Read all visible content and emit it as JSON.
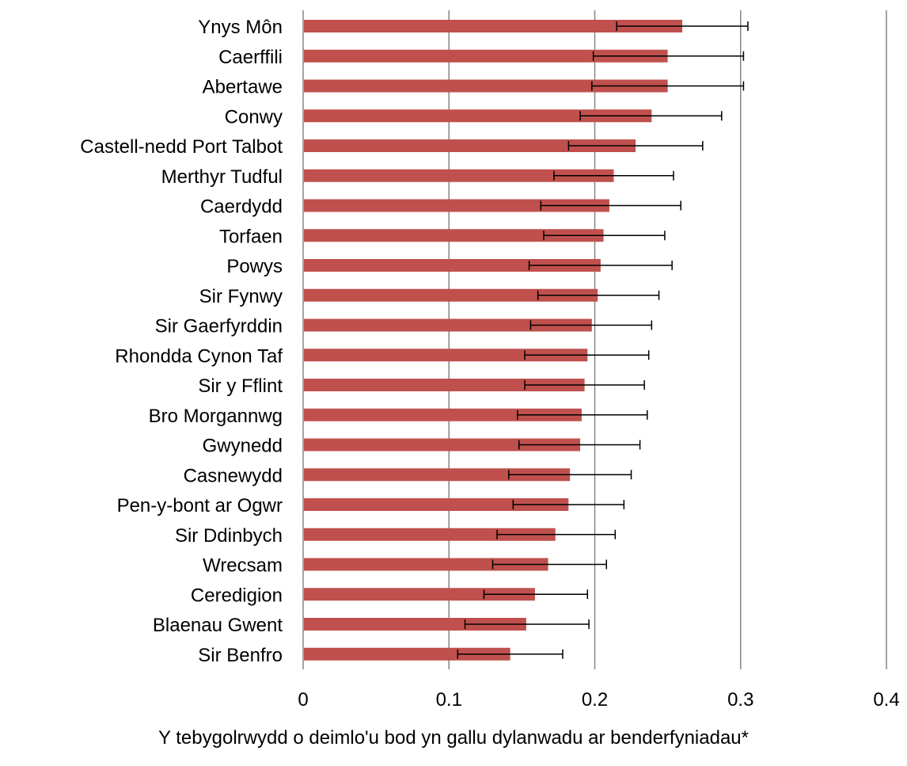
{
  "chart_data": {
    "type": "bar",
    "orientation": "horizontal",
    "categories": [
      "Ynys Môn",
      "Caerffili",
      "Abertawe",
      "Conwy",
      "Castell-nedd Port Talbot",
      "Merthyr Tudful",
      "Caerdydd",
      "Torfaen",
      "Powys",
      "Sir Fynwy",
      "Sir Gaerfyrddin",
      "Rhondda Cynon Taf",
      "Sir y Fflint",
      "Bro Morgannwg",
      "Gwynedd",
      "Casnewydd",
      "Pen-y-bont ar Ogwr",
      "Sir Ddinbych",
      "Wrecsam",
      "Ceredigion",
      "Blaenau Gwent",
      "Sir Benfro"
    ],
    "values": [
      0.26,
      0.25,
      0.25,
      0.239,
      0.228,
      0.213,
      0.21,
      0.206,
      0.204,
      0.202,
      0.198,
      0.195,
      0.193,
      0.191,
      0.19,
      0.183,
      0.182,
      0.173,
      0.168,
      0.159,
      0.153,
      0.142
    ],
    "error_low": [
      0.215,
      0.199,
      0.198,
      0.19,
      0.182,
      0.172,
      0.163,
      0.165,
      0.155,
      0.161,
      0.156,
      0.152,
      0.152,
      0.147,
      0.148,
      0.141,
      0.144,
      0.133,
      0.13,
      0.124,
      0.111,
      0.106
    ],
    "error_high": [
      0.305,
      0.302,
      0.302,
      0.287,
      0.274,
      0.254,
      0.259,
      0.248,
      0.253,
      0.244,
      0.239,
      0.237,
      0.234,
      0.236,
      0.231,
      0.225,
      0.22,
      0.214,
      0.208,
      0.195,
      0.196,
      0.178
    ],
    "xlim": [
      0,
      0.4
    ],
    "xticks": [
      "0",
      "0.1",
      "0.2",
      "0.3",
      "0.4"
    ],
    "xlabel": "Y tebygolrwydd o deimlo'u bod yn gallu dylanwadu ar benderfyniadau*",
    "ylabel": "",
    "grid": "vertical",
    "bar_color": "#c0504d",
    "gridline_color": "#868686"
  }
}
